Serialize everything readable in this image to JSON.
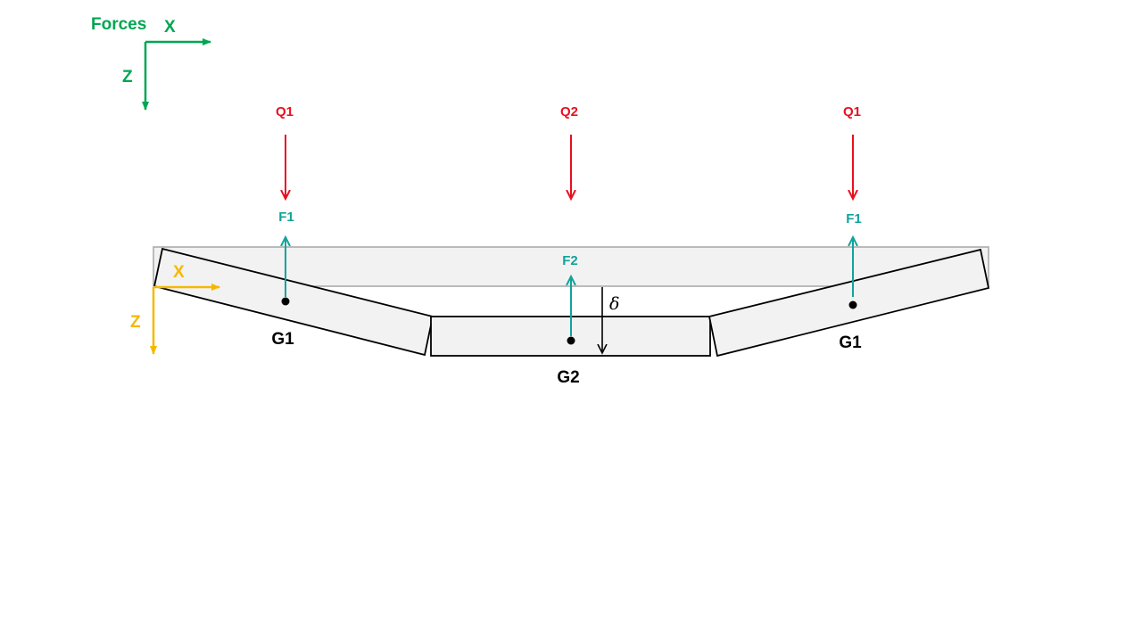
{
  "colors": {
    "global_axes": "#00a651",
    "local_axes": "#f5b800",
    "load": "#e8101e",
    "reaction": "#12a39a",
    "outline": "#000000",
    "reference_fill": "#f2f2f2",
    "reference_stroke": "#a6a6a6"
  },
  "global_axes": {
    "title": "Forces",
    "x_label": "X",
    "z_label": "Z"
  },
  "local_axes": {
    "x_label": "X",
    "z_label": "Z"
  },
  "loads": {
    "left": "Q1",
    "center": "Q2",
    "right": "Q1"
  },
  "reactions": {
    "left": "F1",
    "center": "F2",
    "right": "F1"
  },
  "segments": {
    "left": "G1",
    "center": "G2",
    "right": "G1"
  },
  "deflection_symbol": "δ"
}
